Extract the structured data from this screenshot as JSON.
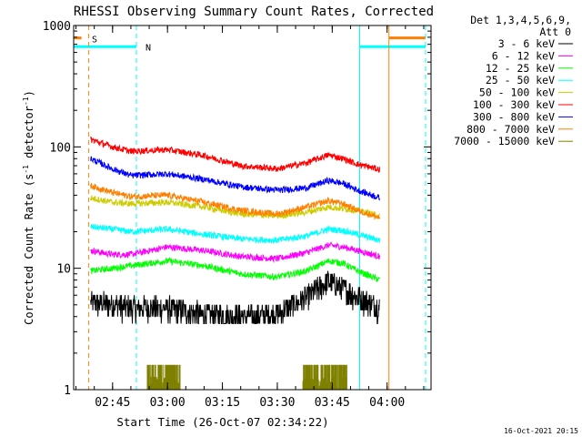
{
  "chart_data": {
    "type": "line",
    "title": "RHESSI Observing Summary Count Rates, Corrected",
    "ylabel_main": "Corrected Count Rate (s",
    "ylabel_sup1": "-1",
    "ylabel_mid": " detector",
    "ylabel_sup2": "-1",
    "ylabel_end": ")",
    "xlabel": "Start Time (26-Oct-07 02:34:22)",
    "footer": "16-Oct-2021 20:15",
    "y_scale": "log",
    "ylim": [
      1,
      1000
    ],
    "xlim": [
      "02:34:22",
      "04:12:00"
    ],
    "y_ticks": [
      {
        "value": 1,
        "label": "1"
      },
      {
        "value": 10,
        "label": "10"
      },
      {
        "value": 100,
        "label": "100"
      },
      {
        "value": 1000,
        "label": "1000"
      }
    ],
    "x_ticks": [
      "02:45",
      "03:00",
      "03:15",
      "03:30",
      "03:45",
      "04:00"
    ],
    "legend_header_1": "Det 1,3,4,5,6,9,",
    "legend_header_2": "Att 0",
    "legend_placement": "right, outside plot",
    "series": [
      {
        "name": "3 - 6 keV",
        "color": "#000000",
        "x": [
          "02:39",
          "02:45",
          "02:50",
          "03:00",
          "03:10",
          "03:20",
          "03:30",
          "03:38",
          "03:44",
          "03:48",
          "03:52",
          "03:58"
        ],
        "values": [
          5.0,
          4.8,
          4.5,
          4.5,
          4.0,
          3.8,
          4.0,
          5.5,
          7.5,
          6.5,
          5.5,
          4.5
        ]
      },
      {
        "name": "6 - 12 keV",
        "color": "#ff00ff",
        "x": [
          "02:39",
          "02:45",
          "02:50",
          "03:00",
          "03:10",
          "03:20",
          "03:30",
          "03:38",
          "03:44",
          "03:48",
          "03:52",
          "03:58"
        ],
        "values": [
          14,
          13,
          13,
          15,
          14,
          12.5,
          12,
          13.5,
          15.5,
          15,
          14,
          12.5
        ]
      },
      {
        "name": "12 - 25 keV",
        "color": "#00ff00",
        "x": [
          "02:39",
          "02:45",
          "02:50",
          "03:00",
          "03:10",
          "03:20",
          "03:30",
          "03:38",
          "03:44",
          "03:48",
          "03:52",
          "03:58"
        ],
        "values": [
          9.5,
          10,
          10.5,
          11.5,
          10.5,
          9,
          8.5,
          9.5,
          11.5,
          11,
          9.5,
          8
        ]
      },
      {
        "name": "25 - 50 keV",
        "color": "#00ffff",
        "x": [
          "02:39",
          "02:45",
          "02:50",
          "03:00",
          "03:10",
          "03:20",
          "03:30",
          "03:38",
          "03:44",
          "03:48",
          "03:52",
          "03:58"
        ],
        "values": [
          22,
          21,
          20,
          21,
          19,
          17.5,
          17,
          18.5,
          21,
          20.5,
          19,
          17
        ]
      },
      {
        "name": "50 - 100 keV",
        "color": "#cccc00",
        "x": [
          "02:39",
          "02:45",
          "02:50",
          "03:00",
          "03:10",
          "03:20",
          "03:30",
          "03:38",
          "03:44",
          "03:48",
          "03:52",
          "03:58"
        ],
        "values": [
          38,
          35,
          34,
          35,
          32,
          28,
          27,
          29,
          32,
          31,
          30,
          27
        ]
      },
      {
        "name": "100 - 300 keV",
        "color": "#ff0000",
        "x": [
          "02:39",
          "02:45",
          "02:50",
          "03:00",
          "03:10",
          "03:20",
          "03:30",
          "03:38",
          "03:44",
          "03:48",
          "03:52",
          "03:58"
        ],
        "values": [
          115,
          100,
          92,
          95,
          85,
          70,
          66,
          74,
          86,
          80,
          72,
          65
        ]
      },
      {
        "name": "300 - 800 keV",
        "color": "#0000ff",
        "x": [
          "02:39",
          "02:45",
          "02:50",
          "03:00",
          "03:10",
          "03:20",
          "03:30",
          "03:38",
          "03:44",
          "03:48",
          "03:52",
          "03:58"
        ],
        "values": [
          80,
          66,
          58,
          60,
          54,
          47,
          44,
          46,
          53,
          50,
          44,
          38
        ]
      },
      {
        "name": "800 - 7000 keV",
        "color": "#ff8000",
        "x": [
          "02:39",
          "02:45",
          "02:50",
          "03:00",
          "03:10",
          "03:20",
          "03:30",
          "03:38",
          "03:44",
          "03:48",
          "03:52",
          "03:58"
        ],
        "values": [
          48,
          42,
          39,
          40,
          35,
          30,
          28,
          32,
          36,
          34,
          30,
          26
        ]
      },
      {
        "name": "7000 - 15000 keV",
        "color": "#808000",
        "x": [
          "02:55",
          "02:57",
          "02:59",
          "03:01",
          "03:03",
          "03:37",
          "03:40",
          "03:43",
          "03:46",
          "03:49"
        ],
        "values": [
          1.6,
          1.6,
          1.6,
          1.6,
          1.6,
          1.6,
          1.6,
          1.6,
          1.6,
          1.6
        ]
      }
    ],
    "flags": [
      {
        "name": "S",
        "color": "#ff8000",
        "type": "saa"
      },
      {
        "name": "N",
        "color": "#00ffff",
        "type": "night"
      }
    ],
    "intervals": [
      {
        "color": "#00ffff",
        "from": "02:34:22",
        "to": "02:51:30",
        "level": 670
      },
      {
        "color": "#ff8000",
        "from": "02:34:22",
        "to": "02:36:30",
        "level": 790
      },
      {
        "color": "#00ffff",
        "from": "03:52:30",
        "to": "04:10:30",
        "level": 670
      },
      {
        "color": "#ff8000",
        "from": "04:00:30",
        "to": "04:10:30",
        "level": 790
      }
    ],
    "vlines": [
      {
        "t": "02:38:30",
        "color": "#ff8000",
        "style": "dashed"
      },
      {
        "t": "02:51:30",
        "color": "#00ffff",
        "style": "dashed"
      },
      {
        "t": "03:52:30",
        "color": "#00ffff",
        "style": "solid"
      },
      {
        "t": "04:00:30",
        "color": "#ff8000",
        "style": "solid"
      },
      {
        "t": "04:10:30",
        "color": "#00ffff",
        "style": "dashed"
      }
    ]
  }
}
